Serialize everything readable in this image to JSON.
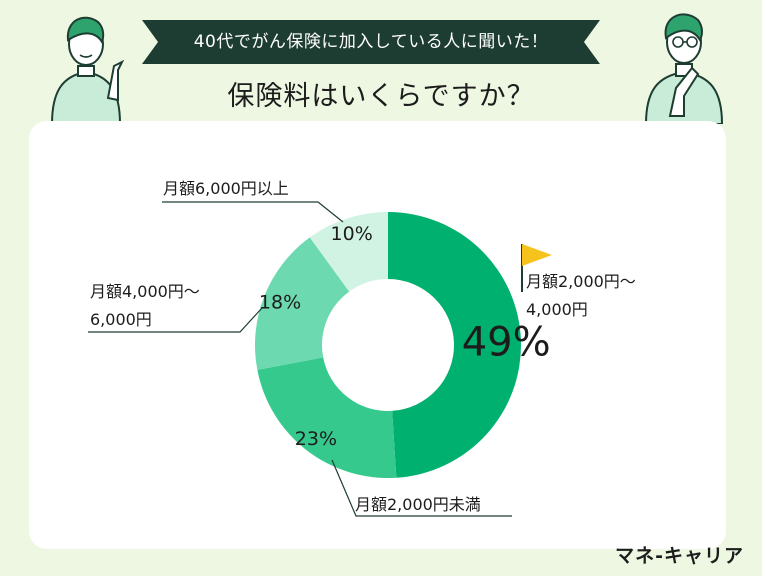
{
  "banner": "40代でがん保険に加入している人に聞いた！",
  "title": "保険料はいくらですか？",
  "brand": "マネ-キャリア",
  "colors": {
    "background": "#eef7e2",
    "banner": "#1e3d32",
    "flag": "#f6c21c"
  },
  "chart_data": {
    "type": "pie",
    "donut": true,
    "title": "保険料はいくらですか？",
    "slices": [
      {
        "label_lines": [
          "月額2,000円〜",
          "4,000円"
        ],
        "value": 49,
        "value_label": "49%",
        "color": "#00b06f"
      },
      {
        "label_lines": [
          "月額2,000円未満"
        ],
        "value": 23,
        "value_label": "23%",
        "color": "#36c98e"
      },
      {
        "label_lines": [
          "月額4,000円〜",
          "6,000円"
        ],
        "value": 18,
        "value_label": "18%",
        "color": "#6cd9b0"
      },
      {
        "label_lines": [
          "月額6,000円以上"
        ],
        "value": 10,
        "value_label": "10%",
        "color": "#d1f3e3"
      }
    ]
  },
  "icons": {
    "flag": "flag-icon",
    "person_left": "person-pointing-icon",
    "person_right": "person-thinking-icon"
  }
}
